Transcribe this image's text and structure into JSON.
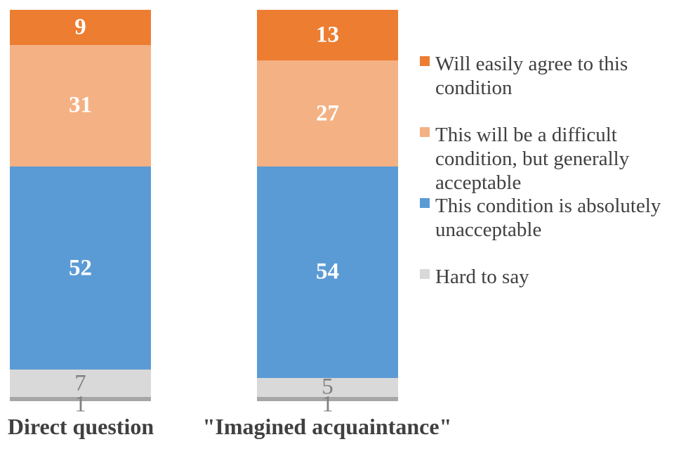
{
  "chart_data": {
    "type": "bar",
    "variant": "100-percent-stacked-column",
    "title": "",
    "categories": [
      "Direct question",
      "\"Imagined acquaintance\""
    ],
    "series": [
      {
        "name": "Will easily agree to this condition",
        "color": "#ED7D31",
        "values": [
          9,
          13
        ],
        "label_color": "#FFFFFF"
      },
      {
        "name": "This will be a difficult condition, but generally acceptable",
        "color": "#F4B183",
        "values": [
          31,
          27
        ],
        "label_color": "#FFFFFF"
      },
      {
        "name": "This condition is absolutely unacceptable",
        "color": "#5B9BD5",
        "values": [
          52,
          54
        ],
        "label_color": "#FFFFFF"
      },
      {
        "name": "Hard to say",
        "color": "#D9D9D9",
        "values": [
          7,
          5
        ],
        "label_color": "#808080"
      },
      {
        "name": "",
        "color": "#A6A6A6",
        "values": [
          1,
          1
        ],
        "label_color": "#808080",
        "in_legend": false
      }
    ],
    "legend": {
      "position": "right",
      "entries": [
        "Will easily agree to this condition",
        "This will be a difficult condition, but generally acceptable",
        "This condition is absolutely unacceptable",
        "Hard to say"
      ]
    },
    "ylim": [
      0,
      100
    ],
    "axes_visible": false,
    "grid": false,
    "category_label_color": "#404040",
    "legend_text_color": "#404040"
  }
}
